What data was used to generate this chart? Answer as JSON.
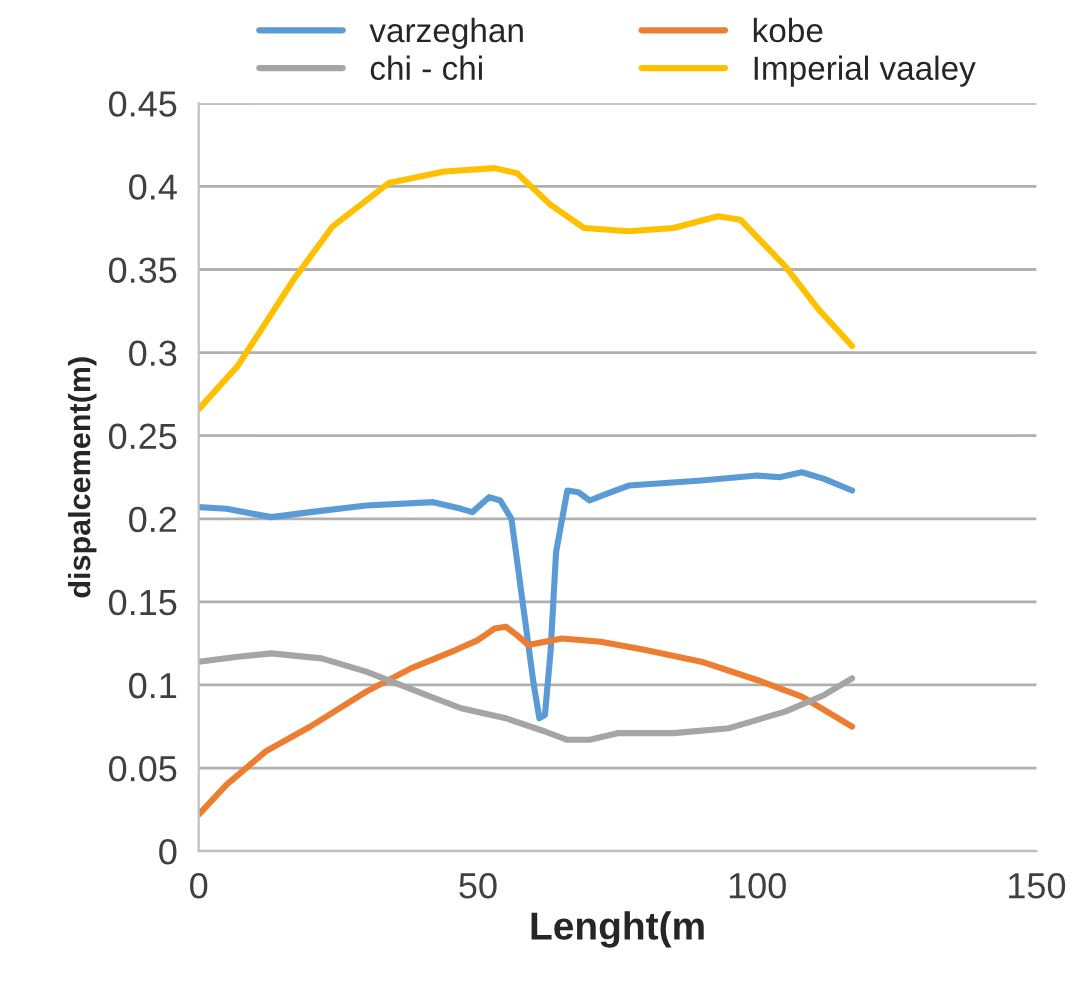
{
  "chart_data": {
    "type": "line",
    "xlabel": "Lenght(m",
    "ylabel": "dispalcement(m)",
    "xlim": [
      0,
      150
    ],
    "xticks": [
      0,
      50,
      100,
      150
    ],
    "ylim": [
      0,
      0.45
    ],
    "yticks": [
      0,
      0.05,
      0.1,
      0.15,
      0.2,
      0.25,
      0.3,
      0.35,
      0.4,
      0.45
    ],
    "grid": "y",
    "legend": "top",
    "marker": "none",
    "line_style": "solid",
    "series": [
      {
        "name": "varzeghan",
        "color": "#5b9bd5",
        "x": [
          0,
          5,
          13,
          20,
          30,
          42,
          47,
          49,
          52,
          54,
          56,
          58,
          60,
          61,
          62,
          63,
          64,
          66,
          68,
          70,
          73,
          77,
          90,
          100,
          104,
          108,
          112,
          117
        ],
        "values": [
          0.207,
          0.206,
          0.201,
          0.204,
          0.208,
          0.21,
          0.206,
          0.204,
          0.213,
          0.211,
          0.2,
          0.15,
          0.1,
          0.08,
          0.082,
          0.12,
          0.18,
          0.217,
          0.216,
          0.211,
          0.215,
          0.22,
          0.223,
          0.226,
          0.225,
          0.228,
          0.224,
          0.217
        ]
      },
      {
        "name": "kobe",
        "color": "#ed7d31",
        "x": [
          0,
          5,
          12,
          20,
          30,
          38,
          46,
          50,
          53,
          55,
          57,
          59,
          62,
          65,
          72,
          80,
          90,
          100,
          108,
          117
        ],
        "values": [
          0.022,
          0.04,
          0.06,
          0.075,
          0.096,
          0.11,
          0.121,
          0.127,
          0.134,
          0.135,
          0.13,
          0.124,
          0.126,
          0.128,
          0.126,
          0.121,
          0.114,
          0.103,
          0.093,
          0.075
        ]
      },
      {
        "name": "chi - chi",
        "color": "#a5a5a5",
        "x": [
          0,
          7,
          13,
          22,
          30,
          40,
          47,
          55,
          62,
          66,
          70,
          75,
          85,
          95,
          105,
          112,
          117
        ],
        "values": [
          0.114,
          0.117,
          0.119,
          0.116,
          0.108,
          0.095,
          0.086,
          0.08,
          0.072,
          0.067,
          0.067,
          0.071,
          0.071,
          0.074,
          0.084,
          0.094,
          0.104
        ]
      },
      {
        "name": "Imperial vaaley",
        "color": "#ffc000",
        "x": [
          0,
          7,
          17,
          24,
          34,
          44,
          53,
          57,
          63,
          69,
          77,
          85,
          93,
          97,
          105,
          111,
          117
        ],
        "values": [
          0.266,
          0.292,
          0.344,
          0.376,
          0.402,
          0.409,
          0.411,
          0.408,
          0.389,
          0.375,
          0.373,
          0.375,
          0.382,
          0.38,
          0.352,
          0.326,
          0.304
        ]
      }
    ]
  }
}
